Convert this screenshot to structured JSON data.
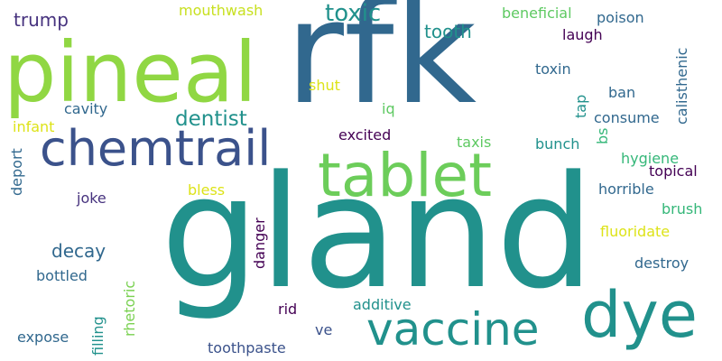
{
  "word_cloud": {
    "colors": {
      "background": "#ffffff",
      "palette": [
        "#440154",
        "#443983",
        "#31688e",
        "#21918c",
        "#35b779",
        "#90d743",
        "#fde725"
      ]
    },
    "words": [
      {
        "text": "gland",
        "color": "#21918c",
        "orientation": "horizontal"
      },
      {
        "text": "rfk",
        "color": "#31688e",
        "orientation": "horizontal"
      },
      {
        "text": "pineal",
        "color": "#90d743",
        "orientation": "horizontal"
      },
      {
        "text": "tablet",
        "color": "#6ccd5a",
        "orientation": "horizontal"
      },
      {
        "text": "chemtrail",
        "color": "#3b528b",
        "orientation": "horizontal"
      },
      {
        "text": "dye",
        "color": "#21918c",
        "orientation": "horizontal"
      },
      {
        "text": "vaccine",
        "color": "#21918c",
        "orientation": "horizontal"
      },
      {
        "text": "toxic",
        "color": "#21918c",
        "orientation": "horizontal"
      },
      {
        "text": "dentist",
        "color": "#21918c",
        "orientation": "horizontal"
      },
      {
        "text": "tooth",
        "color": "#21918c",
        "orientation": "horizontal"
      },
      {
        "text": "trump",
        "color": "#46327e",
        "orientation": "horizontal"
      },
      {
        "text": "mouthwash",
        "color": "#c8e020",
        "orientation": "horizontal"
      },
      {
        "text": "beneficial",
        "color": "#5ec962",
        "orientation": "horizontal"
      },
      {
        "text": "poison",
        "color": "#31688e",
        "orientation": "horizontal"
      },
      {
        "text": "laugh",
        "color": "#440154",
        "orientation": "horizontal"
      },
      {
        "text": "toxin",
        "color": "#31688e",
        "orientation": "horizontal"
      },
      {
        "text": "shut",
        "color": "#dde318",
        "orientation": "horizontal"
      },
      {
        "text": "iq",
        "color": "#5ec962",
        "orientation": "horizontal"
      },
      {
        "text": "cavity",
        "color": "#31688e",
        "orientation": "horizontal"
      },
      {
        "text": "infant",
        "color": "#dde318",
        "orientation": "horizontal"
      },
      {
        "text": "ban",
        "color": "#31688e",
        "orientation": "horizontal"
      },
      {
        "text": "consume",
        "color": "#31688e",
        "orientation": "horizontal"
      },
      {
        "text": "excited",
        "color": "#440154",
        "orientation": "horizontal"
      },
      {
        "text": "taxis",
        "color": "#5ec962",
        "orientation": "horizontal"
      },
      {
        "text": "bunch",
        "color": "#21918c",
        "orientation": "horizontal"
      },
      {
        "text": "hygiene",
        "color": "#35b779",
        "orientation": "horizontal"
      },
      {
        "text": "topical",
        "color": "#440154",
        "orientation": "horizontal"
      },
      {
        "text": "bless",
        "color": "#dde318",
        "orientation": "horizontal"
      },
      {
        "text": "horrible",
        "color": "#31688e",
        "orientation": "horizontal"
      },
      {
        "text": "joke",
        "color": "#46327e",
        "orientation": "horizontal"
      },
      {
        "text": "brush",
        "color": "#35b779",
        "orientation": "horizontal"
      },
      {
        "text": "decay",
        "color": "#31688e",
        "orientation": "horizontal"
      },
      {
        "text": "fluoridate",
        "color": "#dde318",
        "orientation": "horizontal"
      },
      {
        "text": "destroy",
        "color": "#31688e",
        "orientation": "horizontal"
      },
      {
        "text": "bottled",
        "color": "#31688e",
        "orientation": "horizontal"
      },
      {
        "text": "additive",
        "color": "#21918c",
        "orientation": "horizontal"
      },
      {
        "text": "rid",
        "color": "#440154",
        "orientation": "horizontal"
      },
      {
        "text": "ve",
        "color": "#3b528b",
        "orientation": "horizontal"
      },
      {
        "text": "expose",
        "color": "#31688e",
        "orientation": "horizontal"
      },
      {
        "text": "toothpaste",
        "color": "#3b528b",
        "orientation": "horizontal"
      },
      {
        "text": "danger",
        "color": "#440154",
        "orientation": "vertical"
      },
      {
        "text": "rhetoric",
        "color": "#7ad151",
        "orientation": "vertical"
      },
      {
        "text": "filling",
        "color": "#21918c",
        "orientation": "vertical"
      },
      {
        "text": "deport",
        "color": "#31688e",
        "orientation": "vertical"
      },
      {
        "text": "tap",
        "color": "#21918c",
        "orientation": "vertical"
      },
      {
        "text": "bs",
        "color": "#35b779",
        "orientation": "vertical"
      },
      {
        "text": "calisthenic",
        "color": "#31688e",
        "orientation": "vertical"
      }
    ]
  }
}
